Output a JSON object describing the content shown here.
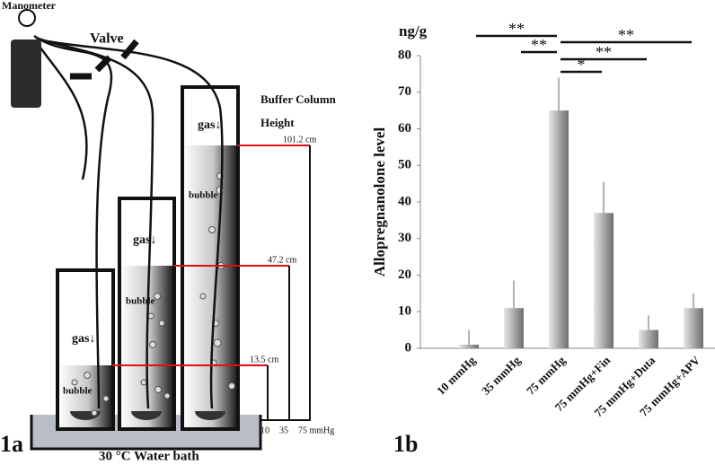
{
  "chart_data": {
    "type": "bar",
    "y_unit": "ng/g",
    "y_label": "Allopregnanolone level",
    "categories": [
      "10 mmHg",
      "35 mmHg",
      "75 mmHg",
      "75 mmHg+Fin",
      "75 mmHg+Duta",
      "75 mmHg+APV"
    ],
    "values": [
      1,
      11,
      65,
      37,
      5,
      11
    ],
    "errors": [
      4,
      7.5,
      9,
      8.5,
      4,
      4
    ],
    "color": "#6e6e6e",
    "ylim": [
      0,
      80
    ],
    "yticks": [
      0,
      10,
      20,
      30,
      40,
      50,
      60,
      70,
      80
    ],
    "grid": false,
    "annotations": [
      {
        "text": "**",
        "from": "10 mmHg",
        "to": "75 mmHg"
      },
      {
        "text": "**",
        "from": "35 mmHg",
        "to": "75 mmHg"
      },
      {
        "text": "**",
        "from": "75 mmHg",
        "to": "75 mmHg+APV"
      },
      {
        "text": "**",
        "from": "75 mmHg",
        "to": "75 mmHg+Duta"
      },
      {
        "text": "*",
        "from": "75 mmHg",
        "to": "75 mmHg+Fin"
      }
    ]
  },
  "diagram": {
    "manometer": "Manometer",
    "valve": "Valve",
    "buffer_column": "Buffer Column",
    "height": "Height",
    "gas": [
      "gas↓",
      "gas↓",
      "gas↓"
    ],
    "bubble": [
      "bubble",
      "bubble",
      "bubble"
    ],
    "heights": [
      "101.2 cm",
      "47.2 cm",
      "13.5 cm"
    ],
    "pressures": [
      "10",
      "35",
      "75 mmHg"
    ],
    "water_bath": "30 °C Water bath",
    "panel_a": "1a",
    "panel_b": "1b"
  }
}
